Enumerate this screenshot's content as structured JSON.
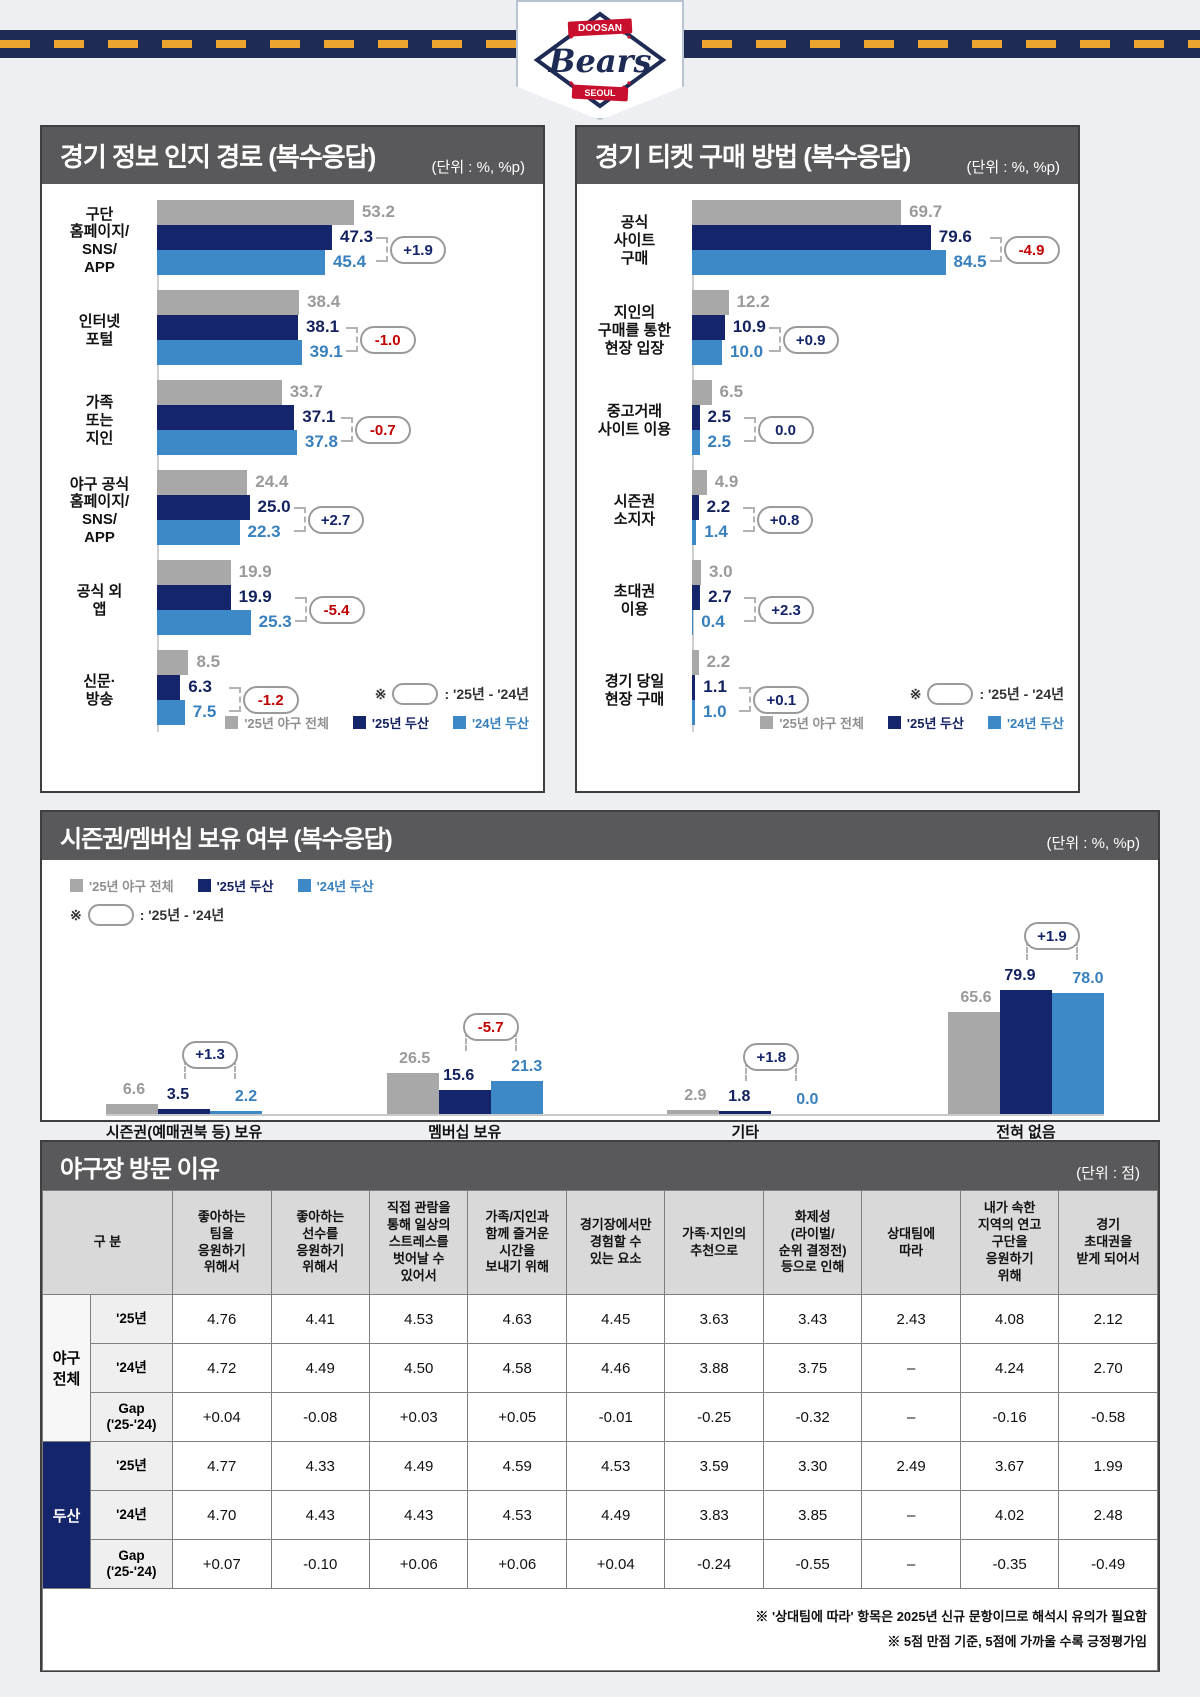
{
  "header": {
    "org": "DOOSAN",
    "team": "Bears",
    "city": "SEOUL"
  },
  "colors": {
    "navy_band": "#1f2b55",
    "orange_dash": "#eda52f",
    "title_bar": "#59595b",
    "series": [
      "#a8a8a8",
      "#15256b",
      "#3d89c7"
    ],
    "series_text": [
      "#9a9a9a",
      "#13215f",
      "#3880bd"
    ],
    "positive_text": "#15256b",
    "negative_text": "#c00000"
  },
  "series_legend": [
    "'25년 야구 전체",
    "'25년 두산",
    "'24년 두산"
  ],
  "diff_note": {
    "prefix": "※",
    "suffix": ": '25년 - '24년"
  },
  "chart_data": [
    {
      "type": "bar",
      "orientation": "horizontal",
      "title": "경기 정보 인지 경로 (복수응답)",
      "unit": "(단위 : %, %p)",
      "legend_position": "bottom-right",
      "grid": false,
      "xlim": [
        0,
        58
      ],
      "series": [
        "'25년 야구 전체",
        "'25년 두산",
        "'24년 두산"
      ],
      "categories": [
        "구단\n홈페이지/\nSNS/\nAPP",
        "인터넷\n포털",
        "가족\n또는\n지인",
        "야구 공식\n홈페이지/\nSNS/\nAPP",
        "공식 외\n앱",
        "신문·\n방송"
      ],
      "values": [
        [
          53.2,
          47.3,
          45.4
        ],
        [
          38.4,
          38.1,
          39.1
        ],
        [
          33.7,
          37.1,
          37.8
        ],
        [
          24.4,
          25.0,
          22.3
        ],
        [
          19.9,
          19.9,
          25.3
        ],
        [
          8.5,
          6.3,
          7.5
        ]
      ],
      "diffs": [
        "+1.9",
        "-1.0",
        "-0.7",
        "+2.7",
        "-5.4",
        "-1.2"
      ]
    },
    {
      "type": "bar",
      "orientation": "horizontal",
      "title": "경기 티켓 구매 방법 (복수응답)",
      "unit": "(단위 : %, %p)",
      "legend_position": "bottom-right",
      "grid": false,
      "xlim": [
        0,
        90
      ],
      "series": [
        "'25년 야구 전체",
        "'25년 두산",
        "'24년 두산"
      ],
      "categories": [
        "공식\n사이트\n구매",
        "지인의\n구매를 통한\n현장 입장",
        "중고거래\n사이트 이용",
        "시즌권\n소지자",
        "초대권\n이용",
        "경기 당일\n현장 구매"
      ],
      "values": [
        [
          69.7,
          79.6,
          84.5
        ],
        [
          12.2,
          10.9,
          10.0
        ],
        [
          6.5,
          2.5,
          2.5
        ],
        [
          4.9,
          2.2,
          1.4
        ],
        [
          3.0,
          2.7,
          0.4
        ],
        [
          2.2,
          1.1,
          1.0
        ]
      ],
      "diffs": [
        "-4.9",
        "+0.9",
        "0.0",
        "+0.8",
        "+2.3",
        "+0.1"
      ]
    },
    {
      "type": "bar",
      "orientation": "vertical",
      "title": "시즌권/멤버십 보유 여부 (복수응답)",
      "unit": "(단위 : %, %p)",
      "legend_position": "top-left",
      "grid": false,
      "ylim": [
        0,
        90
      ],
      "series": [
        "'25년 야구 전체",
        "'25년 두산",
        "'24년 두산"
      ],
      "categories": [
        "시즌권(예매권북 등) 보유",
        "멤버십 보유",
        "기타",
        "전혀 없음"
      ],
      "values": [
        [
          6.6,
          3.5,
          2.2
        ],
        [
          26.5,
          15.6,
          21.3
        ],
        [
          2.9,
          1.8,
          0.0
        ],
        [
          65.6,
          79.9,
          78.0
        ]
      ],
      "diffs": [
        "+1.3",
        "-5.7",
        "+1.8",
        "+1.9"
      ]
    },
    {
      "type": "table",
      "title": "야구장 방문 이유",
      "unit": "(단위 : 점)",
      "col_header": "구  분",
      "columns": [
        "좋아하는\n팀을\n응원하기\n위해서",
        "좋아하는\n선수를\n응원하기\n위해서",
        "직접 관람을\n통해 일상의\n스트레스를\n벗어날 수\n있어서",
        "가족/지인과\n함께 즐거운\n시간을\n보내기 위해",
        "경기장에서만\n경험할 수\n있는 요소",
        "가족·지인의\n추천으로",
        "화제성\n(라이벌/\n순위 결정전)\n등으로 인해",
        "상대팀에\n따라",
        "내가 속한\n지역의 연고\n구단을\n응원하기\n위해",
        "경기\n초대권을\n받게 되어서"
      ],
      "groups": [
        {
          "label": "야구\n전체",
          "navy": false,
          "rows": [
            {
              "label": "'25년",
              "gap": false,
              "values": [
                "4.76",
                "4.41",
                "4.53",
                "4.63",
                "4.45",
                "3.63",
                "3.43",
                "2.43",
                "4.08",
                "2.12"
              ]
            },
            {
              "label": "'24년",
              "gap": false,
              "values": [
                "4.72",
                "4.49",
                "4.50",
                "4.58",
                "4.46",
                "3.88",
                "3.75",
                "–",
                "4.24",
                "2.70"
              ]
            },
            {
              "label": "Gap\n('25-'24)",
              "gap": true,
              "values": [
                "+0.04",
                "-0.08",
                "+0.03",
                "+0.05",
                "-0.01",
                "-0.25",
                "-0.32",
                "–",
                "-0.16",
                "-0.58"
              ]
            }
          ]
        },
        {
          "label": "두산",
          "navy": true,
          "rows": [
            {
              "label": "'25년",
              "gap": false,
              "values": [
                "4.77",
                "4.33",
                "4.49",
                "4.59",
                "4.53",
                "3.59",
                "3.30",
                "2.49",
                "3.67",
                "1.99"
              ]
            },
            {
              "label": "'24년",
              "gap": false,
              "values": [
                "4.70",
                "4.43",
                "4.43",
                "4.53",
                "4.49",
                "3.83",
                "3.85",
                "–",
                "4.02",
                "2.48"
              ]
            },
            {
              "label": "Gap\n('25-'24)",
              "gap": true,
              "values": [
                "+0.07",
                "-0.10",
                "+0.06",
                "+0.06",
                "+0.04",
                "-0.24",
                "-0.55",
                "–",
                "-0.35",
                "-0.49"
              ]
            }
          ]
        }
      ],
      "footnotes": [
        "※ '상대팀에 따라' 항목은 2025년 신규 문항이므로 해석시 유의가 필요함",
        "※ 5점 만점 기준, 5점에 가까울 수록 긍정평가임"
      ]
    }
  ]
}
